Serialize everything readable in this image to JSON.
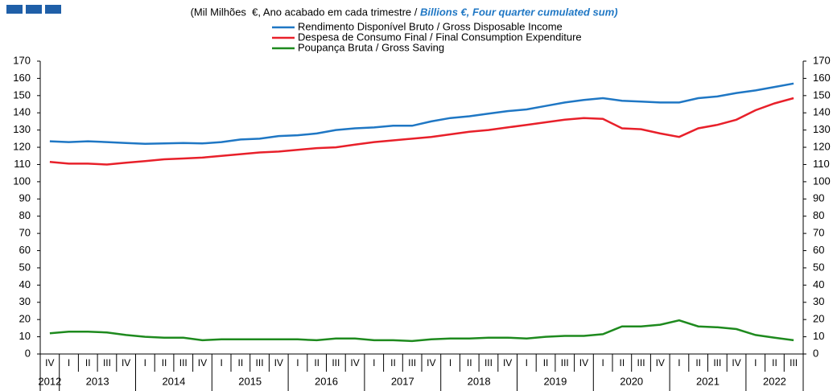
{
  "chart_data": {
    "type": "line",
    "subtitle_pt": "(Mil Milhões  €, Ano acabado em cada trimestre / ",
    "subtitle_en": "Billions €, Four quarter cumulated sum)",
    "categories": [
      "IV",
      "I",
      "II",
      "III",
      "IV",
      "I",
      "II",
      "III",
      "IV",
      "I",
      "II",
      "III",
      "IV",
      "I",
      "II",
      "III",
      "IV",
      "I",
      "II",
      "III",
      "IV",
      "I",
      "II",
      "III",
      "IV",
      "I",
      "II",
      "III",
      "IV",
      "I",
      "II",
      "III",
      "IV",
      "I",
      "II",
      "III",
      "IV",
      "I",
      "II",
      "III"
    ],
    "years": [
      "2012",
      "2013",
      "2014",
      "2015",
      "2016",
      "2017",
      "2018",
      "2019",
      "2020",
      "2021",
      "2022"
    ],
    "ylim": [
      0,
      170
    ],
    "yticks": [
      0,
      10,
      20,
      30,
      40,
      50,
      60,
      70,
      80,
      90,
      100,
      110,
      120,
      130,
      140,
      150,
      160,
      170
    ],
    "grid": false,
    "series": [
      {
        "name": "Rendimento Disponível Bruto / Gross Disposable Income",
        "color": "#1f77c4",
        "values": [
          123.5,
          123,
          123.5,
          123,
          122.5,
          122,
          122.2,
          122.5,
          122.2,
          123,
          124.5,
          125,
          126.5,
          127,
          128,
          130,
          131,
          131.5,
          132.5,
          132.5,
          135,
          137,
          138,
          139.5,
          141,
          142,
          144,
          146,
          147.5,
          148.5,
          147,
          146.5,
          146,
          146,
          148.5,
          149.5,
          151.5,
          153,
          155,
          157
        ]
      },
      {
        "name": "Despesa de Consumo Final / Final Consumption Expenditure",
        "color": "#e8202a",
        "values": [
          111.5,
          110.5,
          110.5,
          110,
          111,
          112,
          113,
          113.5,
          114,
          115,
          116,
          117,
          117.5,
          118.5,
          119.5,
          120,
          121.5,
          123,
          124,
          125,
          126,
          127.5,
          129,
          130,
          131.5,
          133,
          134.5,
          136,
          137,
          136.5,
          131,
          130.5,
          128,
          126,
          131,
          133,
          136,
          141.5,
          145.5,
          148.5
        ]
      },
      {
        "name": "Poupança Bruta / Gross Saving",
        "color": "#1e8a1e",
        "values": [
          12,
          13,
          13,
          12.5,
          11,
          10,
          9.5,
          9.5,
          8,
          8.5,
          8.5,
          8.5,
          8.5,
          8.5,
          8,
          9,
          9,
          8,
          8,
          7.5,
          8.5,
          9,
          9,
          9.5,
          9.5,
          9,
          10,
          10.5,
          10.5,
          11.5,
          16,
          16,
          17,
          19.5,
          16,
          15.5,
          14.5,
          11,
          9.5,
          8
        ]
      }
    ]
  }
}
